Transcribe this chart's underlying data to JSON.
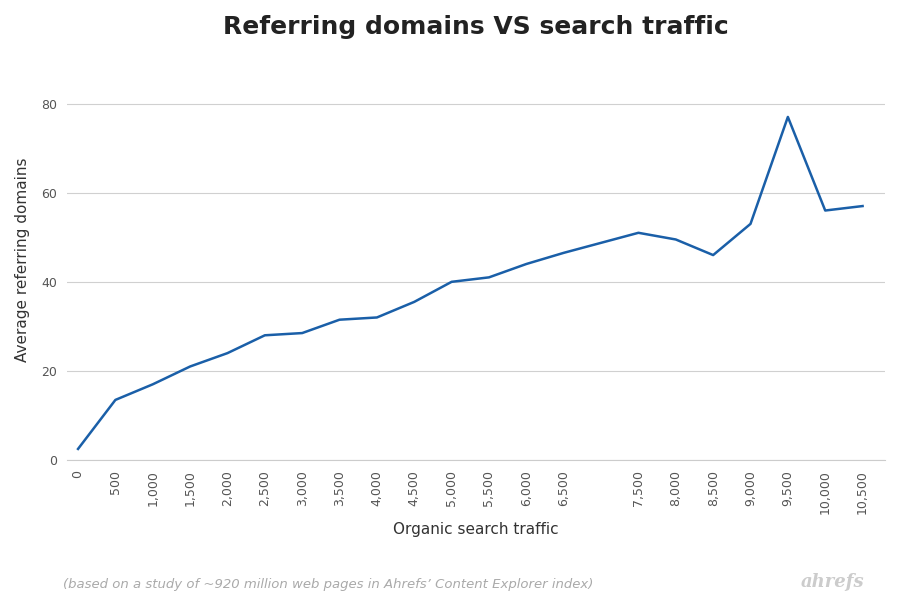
{
  "title": "Referring domains VS search traffic",
  "xlabel": "Organic search traffic",
  "ylabel": "Average referring domains",
  "footnote": "(based on a study of ~920 million web pages in Ahrefs’ Content Explorer index)",
  "branding": "ahrefs",
  "line_color": "#1a5fa8",
  "background_color": "#ffffff",
  "x": [
    0,
    500,
    1000,
    1500,
    2000,
    2500,
    3000,
    3500,
    4000,
    4500,
    5000,
    5500,
    6000,
    6500,
    7500,
    8000,
    8500,
    9000,
    9500,
    10000,
    10500
  ],
  "y": [
    2.5,
    13.5,
    17.0,
    21.0,
    24.0,
    28.0,
    28.5,
    31.5,
    32.0,
    35.5,
    40.0,
    41.0,
    44.0,
    46.5,
    51.0,
    49.5,
    46.0,
    53.0,
    77.0,
    56.0,
    57.0
  ],
  "xlim": [
    -150,
    10800
  ],
  "ylim": [
    0,
    90
  ],
  "yticks": [
    0,
    20,
    40,
    60,
    80
  ],
  "xticks": [
    0,
    500,
    1000,
    1500,
    2000,
    2500,
    3000,
    3500,
    4000,
    4500,
    5000,
    5500,
    6000,
    6500,
    7500,
    8000,
    8500,
    9000,
    9500,
    10000,
    10500
  ],
  "grid_color": "#d0d0d0",
  "title_fontsize": 18,
  "label_fontsize": 11,
  "tick_fontsize": 9,
  "footnote_fontsize": 9.5,
  "branding_fontsize": 13
}
